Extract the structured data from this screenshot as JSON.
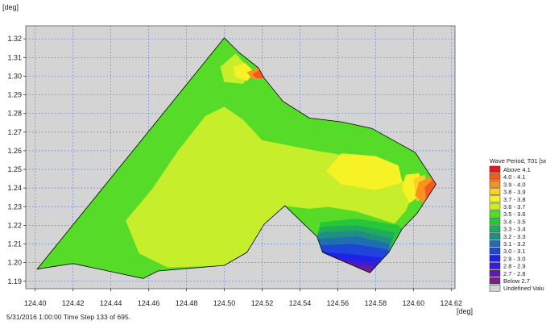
{
  "chart_data": {
    "type": "contour-map",
    "x_unit": "[deg]",
    "y_unit": "[deg]",
    "xlim": [
      124.395,
      124.622
    ],
    "ylim": [
      1.186,
      1.327
    ],
    "x_ticks": [
      124.4,
      124.42,
      124.44,
      124.46,
      124.48,
      124.5,
      124.52,
      124.54,
      124.56,
      124.58,
      124.6,
      124.62
    ],
    "x_tick_labels": [
      "124.40",
      "124.42",
      "124.44",
      "124.46",
      "124.48",
      "124.50",
      "124.52",
      "124.54",
      "124.56",
      "124.58",
      "124.60",
      "124.62"
    ],
    "y_ticks": [
      1.19,
      1.2,
      1.21,
      1.22,
      1.23,
      1.24,
      1.25,
      1.26,
      1.27,
      1.28,
      1.29,
      1.3,
      1.31,
      1.32
    ],
    "y_tick_labels": [
      "1.19",
      "1.20",
      "1.21",
      "1.22",
      "1.23",
      "1.24",
      "1.25",
      "1.26",
      "1.27",
      "1.28",
      "1.29",
      "1.30",
      "1.31",
      "1.32"
    ],
    "grid": true,
    "plot_background": "#d4d4d4",
    "legend": {
      "title": "Wave Period, T01 [se",
      "placement": "right",
      "entries": [
        {
          "label": "Above 4.1",
          "color": "#e8151b"
        },
        {
          "label": "4.0 - 4.1",
          "color": "#f45a1e"
        },
        {
          "label": "3.9 - 4.0",
          "color": "#f7931e"
        },
        {
          "label": "3.8 - 3.9",
          "color": "#fbd024"
        },
        {
          "label": "3.7 - 3.8",
          "color": "#f6f226"
        },
        {
          "label": "3.6 - 3.7",
          "color": "#c6ee2a"
        },
        {
          "label": "3.5 - 3.6",
          "color": "#56dc28"
        },
        {
          "label": "3.4 - 3.5",
          "color": "#26c83a"
        },
        {
          "label": "3.3 - 3.4",
          "color": "#1fab5d"
        },
        {
          "label": "3.2 - 3.3",
          "color": "#1e8f82"
        },
        {
          "label": "3.1 - 3.2",
          "color": "#1f6fb0"
        },
        {
          "label": "3.0 - 3.1",
          "color": "#1e45d8"
        },
        {
          "label": "2.9 - 3.0",
          "color": "#1e22e8"
        },
        {
          "label": "2.8 - 2.9",
          "color": "#3a1ed0"
        },
        {
          "label": "2.7 - 2.8",
          "color": "#5a1ea8"
        },
        {
          "label": "Below 2.7",
          "color": "#7a1f86"
        },
        {
          "label": "Undefined Valu",
          "color": "#d4d4d4"
        }
      ]
    },
    "domain_outline": [
      [
        124.401,
        1.1965
      ],
      [
        124.5,
        1.3205
      ],
      [
        124.508,
        1.3125
      ],
      [
        124.518,
        1.3045
      ],
      [
        124.521,
        1.299
      ],
      [
        124.531,
        1.2865
      ],
      [
        124.545,
        1.2775
      ],
      [
        124.562,
        1.2755
      ],
      [
        124.578,
        1.272
      ],
      [
        124.601,
        1.259
      ],
      [
        124.612,
        1.242
      ],
      [
        124.602,
        1.2265
      ],
      [
        124.594,
        1.218
      ],
      [
        124.587,
        1.2055
      ],
      [
        124.577,
        1.1945
      ],
      [
        124.552,
        1.2055
      ],
      [
        124.549,
        1.214
      ],
      [
        124.532,
        1.2305
      ],
      [
        124.521,
        1.2205
      ],
      [
        124.512,
        1.2055
      ],
      [
        124.5,
        1.1985
      ],
      [
        124.465,
        1.1955
      ],
      [
        124.457,
        1.1915
      ],
      [
        124.42,
        1.1995
      ],
      [
        124.401,
        1.1965
      ]
    ],
    "regions": [
      {
        "class": "3.6 - 3.7",
        "polygon": [
          [
            124.448,
            1.2225
          ],
          [
            124.462,
            1.2395
          ],
          [
            124.476,
            1.2605
          ],
          [
            124.49,
            1.2785
          ],
          [
            124.5,
            1.2835
          ],
          [
            124.51,
            1.2765
          ],
          [
            124.52,
            1.2655
          ],
          [
            124.548,
            1.26
          ],
          [
            124.572,
            1.256
          ],
          [
            124.59,
            1.248
          ],
          [
            124.6,
            1.238
          ],
          [
            124.596,
            1.228
          ],
          [
            124.59,
            1.221
          ],
          [
            124.57,
            1.2275
          ],
          [
            124.555,
            1.23
          ],
          [
            124.545,
            1.229
          ],
          [
            124.532,
            1.2305
          ],
          [
            124.521,
            1.2205
          ],
          [
            124.512,
            1.2055
          ],
          [
            124.5,
            1.1985
          ],
          [
            124.47,
            1.1975
          ],
          [
            124.455,
            1.205
          ]
        ]
      },
      {
        "class": "3.6 - 3.7",
        "polygon": [
          [
            124.498,
            1.305
          ],
          [
            124.506,
            1.312
          ],
          [
            124.514,
            1.303
          ],
          [
            124.51,
            1.296
          ],
          [
            124.5,
            1.297
          ]
        ]
      },
      {
        "class": "3.7 - 3.8",
        "polygon": [
          [
            124.562,
            1.2585
          ],
          [
            124.58,
            1.257
          ],
          [
            124.592,
            1.252
          ],
          [
            124.594,
            1.243
          ],
          [
            124.58,
            1.239
          ],
          [
            124.562,
            1.242
          ],
          [
            124.554,
            1.249
          ]
        ]
      },
      {
        "class": "3.7 - 3.8",
        "polygon": [
          [
            124.505,
            1.305
          ],
          [
            124.511,
            1.307
          ],
          [
            124.516,
            1.302
          ],
          [
            124.512,
            1.2975
          ],
          [
            124.506,
            1.2995
          ]
        ]
      },
      {
        "class": "3.7 - 3.8",
        "polygon": [
          [
            124.596,
            1.247
          ],
          [
            124.603,
            1.248
          ],
          [
            124.605,
            1.237
          ],
          [
            124.598,
            1.232
          ],
          [
            124.594,
            1.24
          ]
        ]
      },
      {
        "class": "3.8 - 3.9",
        "polygon": [
          [
            124.6,
            1.245
          ],
          [
            124.606,
            1.247
          ],
          [
            124.608,
            1.236
          ],
          [
            124.602,
            1.233
          ]
        ]
      },
      {
        "class": "3.9 - 4.0",
        "polygon": [
          [
            124.512,
            1.302
          ],
          [
            124.518,
            1.3045
          ],
          [
            124.521,
            1.299
          ],
          [
            124.515,
            1.2985
          ]
        ]
      },
      {
        "class": "3.9 - 4.0",
        "polygon": [
          [
            124.603,
            1.243
          ],
          [
            124.609,
            1.246
          ],
          [
            124.612,
            1.242
          ],
          [
            124.605,
            1.232
          ],
          [
            124.601,
            1.236
          ]
        ]
      },
      {
        "class": "4.0 - 4.1",
        "polygon": [
          [
            124.515,
            1.301
          ],
          [
            124.519,
            1.3035
          ],
          [
            124.521,
            1.299
          ],
          [
            124.517,
            1.299
          ]
        ]
      },
      {
        "class": "4.0 - 4.1",
        "polygon": [
          [
            124.606,
            1.2405
          ],
          [
            124.61,
            1.244
          ],
          [
            124.612,
            1.242
          ],
          [
            124.607,
            1.234
          ]
        ]
      },
      {
        "class": "3.4 - 3.5",
        "polygon": [
          [
            124.551,
            1.2215
          ],
          [
            124.57,
            1.2235
          ],
          [
            124.592,
            1.22
          ],
          [
            124.594,
            1.218
          ],
          [
            124.587,
            1.2055
          ],
          [
            124.577,
            1.1945
          ],
          [
            124.552,
            1.2055
          ],
          [
            124.549,
            1.214
          ]
        ]
      },
      {
        "class": "3.3 - 3.4",
        "polygon": [
          [
            124.551,
            1.219
          ],
          [
            124.57,
            1.22
          ],
          [
            124.59,
            1.216
          ],
          [
            124.587,
            1.2055
          ],
          [
            124.577,
            1.1945
          ],
          [
            124.552,
            1.2055
          ],
          [
            124.549,
            1.214
          ]
        ]
      },
      {
        "class": "3.2 - 3.3",
        "polygon": [
          [
            124.551,
            1.216
          ],
          [
            124.57,
            1.217
          ],
          [
            124.588,
            1.213
          ],
          [
            124.587,
            1.2055
          ],
          [
            124.577,
            1.1945
          ],
          [
            124.552,
            1.2055
          ],
          [
            124.549,
            1.214
          ]
        ]
      },
      {
        "class": "3.1 - 3.2",
        "polygon": [
          [
            124.55,
            1.2125
          ],
          [
            124.57,
            1.214
          ],
          [
            124.587,
            1.21
          ],
          [
            124.587,
            1.2055
          ],
          [
            124.577,
            1.1945
          ],
          [
            124.552,
            1.2055
          ],
          [
            124.549,
            1.212
          ]
        ]
      },
      {
        "class": "3.0 - 3.1",
        "polygon": [
          [
            124.55,
            1.209
          ],
          [
            124.568,
            1.21
          ],
          [
            124.586,
            1.207
          ],
          [
            124.587,
            1.2055
          ],
          [
            124.577,
            1.1945
          ],
          [
            124.552,
            1.2055
          ]
        ]
      },
      {
        "class": "2.9 - 3.0",
        "polygon": [
          [
            124.552,
            1.2055
          ],
          [
            124.566,
            1.2045
          ],
          [
            124.583,
            1.2025
          ],
          [
            124.577,
            1.1945
          ]
        ]
      },
      {
        "class": "2.8 - 2.9",
        "polygon": [
          [
            124.555,
            1.204
          ],
          [
            124.568,
            1.201
          ],
          [
            124.581,
            1.2005
          ],
          [
            124.577,
            1.1945
          ]
        ]
      },
      {
        "class": "2.7 - 2.8",
        "polygon": [
          [
            124.559,
            1.2025
          ],
          [
            124.57,
            1.1985
          ],
          [
            124.579,
            1.1985
          ],
          [
            124.577,
            1.1945
          ]
        ]
      },
      {
        "class": "Below 2.7",
        "polygon": [
          [
            124.564,
            1.201
          ],
          [
            124.572,
            1.1965
          ],
          [
            124.578,
            1.1965
          ],
          [
            124.577,
            1.1945
          ]
        ]
      }
    ]
  },
  "footer": {
    "text": "5/31/2016 1:00:00   Time Step 133 of 695."
  },
  "colors": {
    "grid": "#6a8fd8",
    "outline": "#000000",
    "background_class": "3.5 - 3.6"
  }
}
